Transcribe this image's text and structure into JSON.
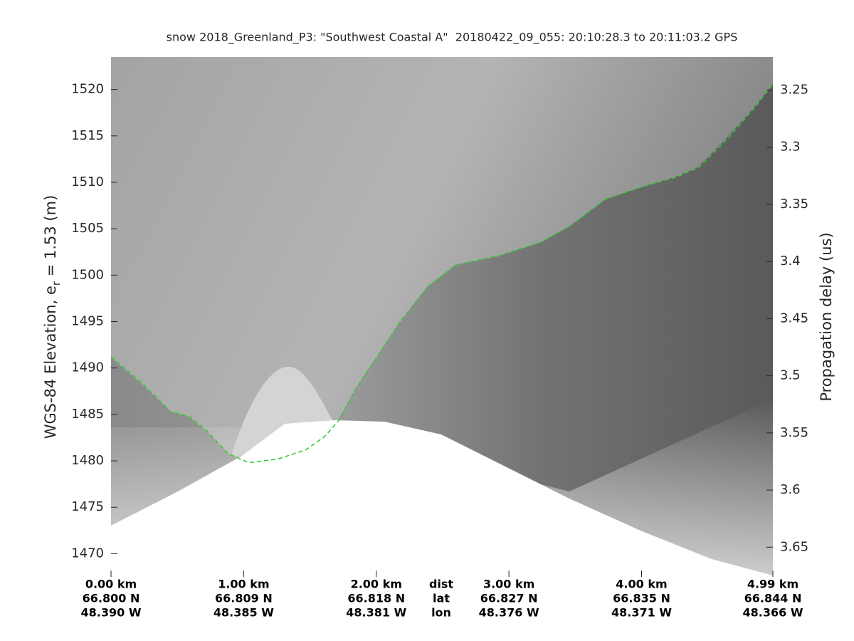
{
  "chart_data": {
    "type": "line",
    "title": "snow 2018_Greenland_P3: \"Southwest Coastal A\"  20180422_09_055: 20:10:28.3 to 20:11:03.2 GPS",
    "ylabel": {
      "text": "WGS-84 Elevation, e",
      "subscript": "r",
      "suffix": " = 1.53 (m)"
    },
    "y2label": "Propagation delay (us)",
    "xlim": [
      0,
      4.99
    ],
    "xticks": [
      {
        "value": 0,
        "label": "0.00 km"
      },
      {
        "value": 1,
        "label": "1.00 km"
      },
      {
        "value": 2,
        "label": "2.00 km"
      },
      {
        "value": 3,
        "label": "3.00 km"
      },
      {
        "value": 4,
        "label": "4.00 km"
      },
      {
        "value": 4.99,
        "label": "4.99 km"
      }
    ],
    "xtick_lat": [
      "66.800 N",
      "66.809 N",
      "66.818 N",
      "66.827 N",
      "66.835 N",
      "66.844 N"
    ],
    "xtick_lon": [
      "48.390 W",
      "48.385 W",
      "48.381 W",
      "48.376 W",
      "48.371 W",
      "48.366 W"
    ],
    "row_labels": [
      "dist",
      "lat",
      "lon"
    ],
    "ylim": [
      1467.5,
      1523.5
    ],
    "yticks": [
      1470,
      1475,
      1480,
      1485,
      1490,
      1495,
      1500,
      1505,
      1510,
      1515,
      1520
    ],
    "y2lim": [
      3.676,
      3.221
    ],
    "y2ticks": [
      3.25,
      3.3,
      3.35,
      3.4,
      3.45,
      3.5,
      3.55,
      3.6,
      3.65
    ],
    "series": [
      {
        "color": "#33cc33",
        "x": [
          0,
          0.24,
          0.45,
          0.59,
          0.72,
          0.88,
          1.04,
          1.26,
          1.47,
          1.61,
          1.72,
          1.85,
          2.01,
          2.17,
          2.39,
          2.6,
          2.92,
          3.25,
          3.46,
          3.73,
          4.0,
          4.27,
          4.43,
          4.65,
          4.86,
          4.99
        ],
        "values": [
          1491.2,
          1488.3,
          1485.3,
          1484.8,
          1483.3,
          1480.8,
          1479.8,
          1480.2,
          1481.2,
          1482.6,
          1484.4,
          1487.9,
          1491.3,
          1494.8,
          1498.8,
          1501.1,
          1502.1,
          1503.6,
          1505.3,
          1508.2,
          1509.5,
          1510.6,
          1511.6,
          1514.7,
          1518.2,
          1520.6
        ]
      }
    ]
  }
}
